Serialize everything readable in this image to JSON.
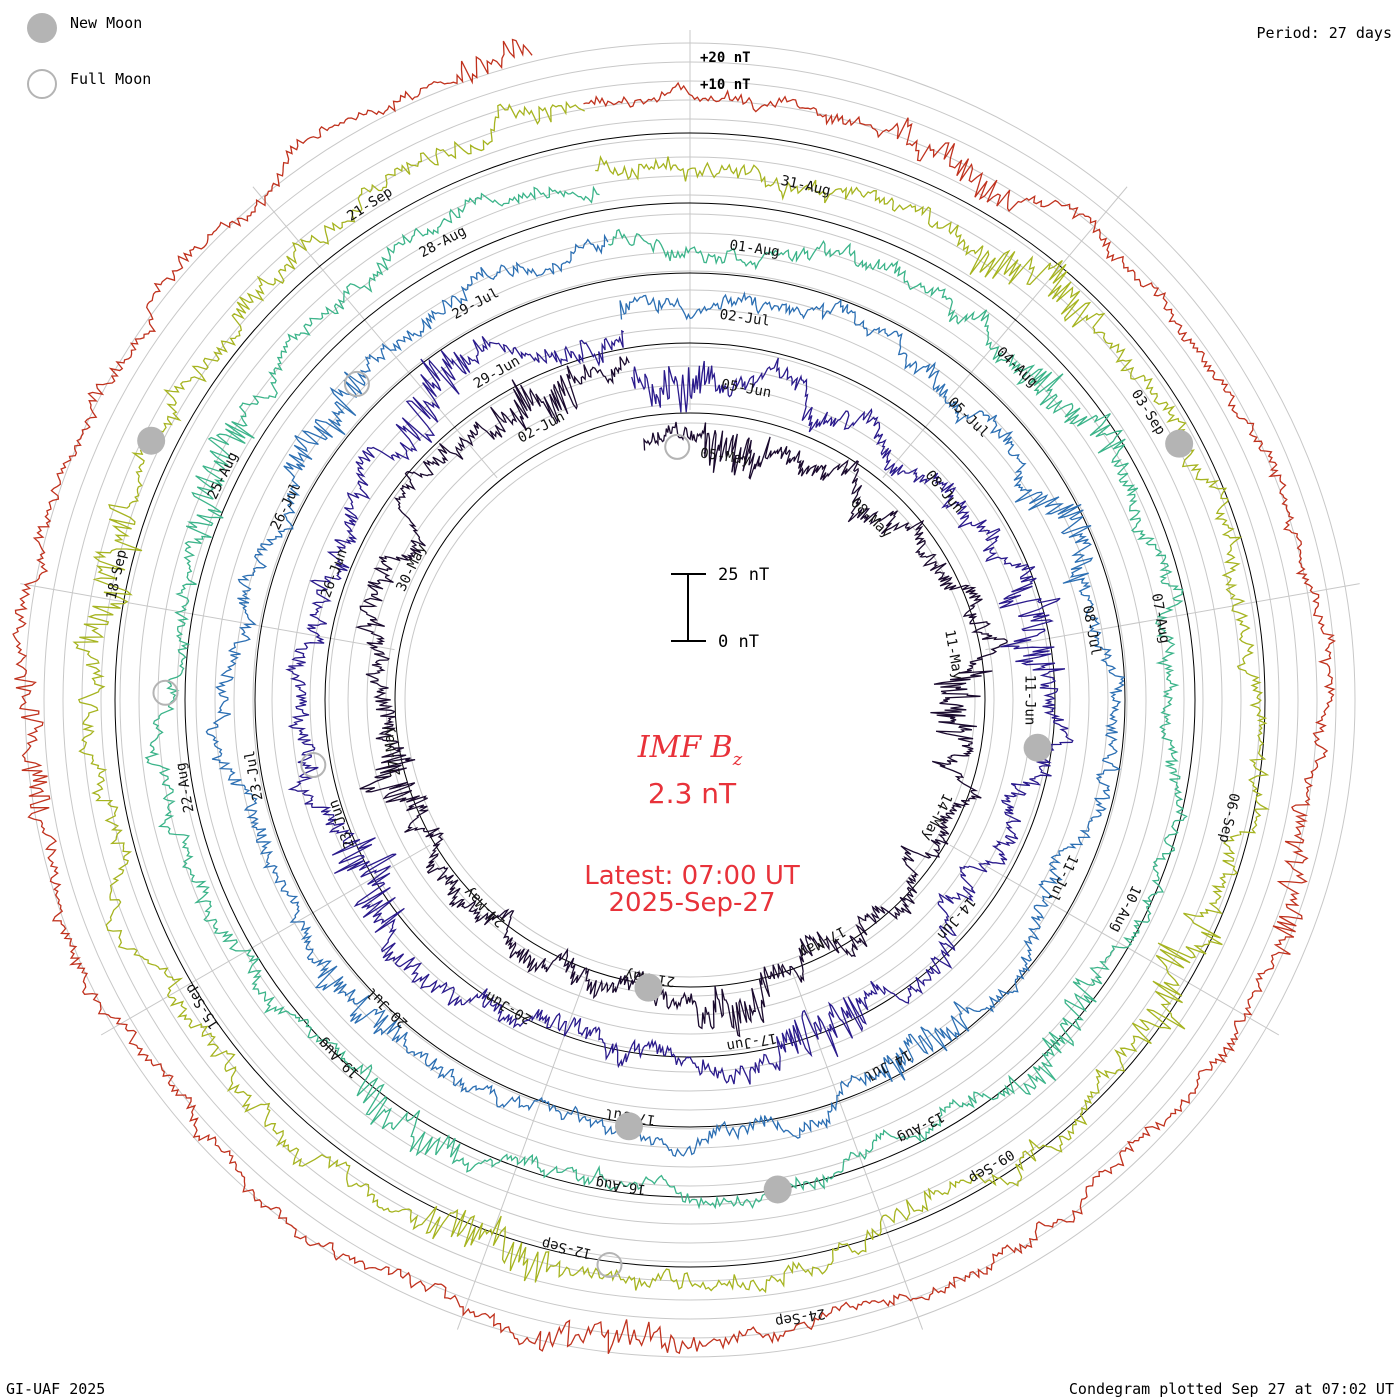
{
  "chart_data": {
    "type": "line",
    "title": "IMF B",
    "title_subscript": "z",
    "current_value": "2.3 nT",
    "latest_time": "Latest: 07:00 UT",
    "latest_date": "2025-Sep-27",
    "period": "Period: 27 days",
    "footer_left": "GI-UAF 2025",
    "footer_right": "Condegram plotted Sep 27 at 07:02 UT",
    "legend": [
      {
        "name": "New Moon",
        "symbol": "filled-circle",
        "color": "#b4b4b4"
      },
      {
        "name": "Full Moon",
        "symbol": "open-circle",
        "color": "#b4b4b4"
      }
    ],
    "tick_labels": {
      "plus20": "+20 nT",
      "plus10": "+10 nT"
    },
    "scale_bar": {
      "top": "25 nT",
      "bottom": "0 nT",
      "span_nT": 25
    },
    "rotations": [
      {
        "index": 0,
        "color": "#1a0a2e",
        "dates": [
          "05-May",
          "08-May",
          "11-May",
          "14-May",
          "17-May",
          "21-May",
          "24-May",
          "27-May",
          "30-May",
          "02-Jun"
        ],
        "approx_range_nT": [
          -20,
          20
        ]
      },
      {
        "index": 1,
        "color": "#2a1a8c",
        "dates": [
          "05-Jun",
          "08-Jun",
          "11-Jun",
          "14-Jun",
          "17-Jun",
          "20-Jun",
          "23-Jun",
          "26-Jun",
          "29-Jun"
        ],
        "approx_range_nT": [
          -20,
          20
        ]
      },
      {
        "index": 2,
        "color": "#2c6fb3",
        "dates": [
          "02-Jul",
          "05-Jul",
          "08-Jul",
          "11-Jul",
          "14-Jul",
          "17-Jul",
          "20-Jul",
          "23-Jul",
          "26-Jul",
          "29-Jul"
        ],
        "approx_range_nT": [
          -15,
          15
        ]
      },
      {
        "index": 3,
        "color": "#3cb48a",
        "dates": [
          "01-Aug",
          "04-Aug",
          "07-Aug",
          "10-Aug",
          "13-Aug",
          "16-Aug",
          "19-Aug",
          "22-Aug",
          "25-Aug",
          "28-Aug"
        ],
        "approx_range_nT": [
          -15,
          15
        ]
      },
      {
        "index": 4,
        "color": "#a6b420",
        "dates": [
          "31-Aug",
          "03-Sep",
          "06-Sep",
          "09-Sep",
          "12-Sep",
          "15-Sep",
          "18-Sep",
          "21-Sep"
        ],
        "approx_range_nT": [
          -15,
          20
        ]
      },
      {
        "index": 5,
        "color": "#c0321e",
        "dates": [
          "24-Sep"
        ],
        "approx_range_nT": [
          -10,
          15
        ]
      }
    ],
    "series_colors": [
      "#1a0a2e",
      "#2a1a8c",
      "#2c6fb3",
      "#3cb48a",
      "#a6b420",
      "#c0321e"
    ],
    "days_per_rotation": 27,
    "grid": true
  }
}
